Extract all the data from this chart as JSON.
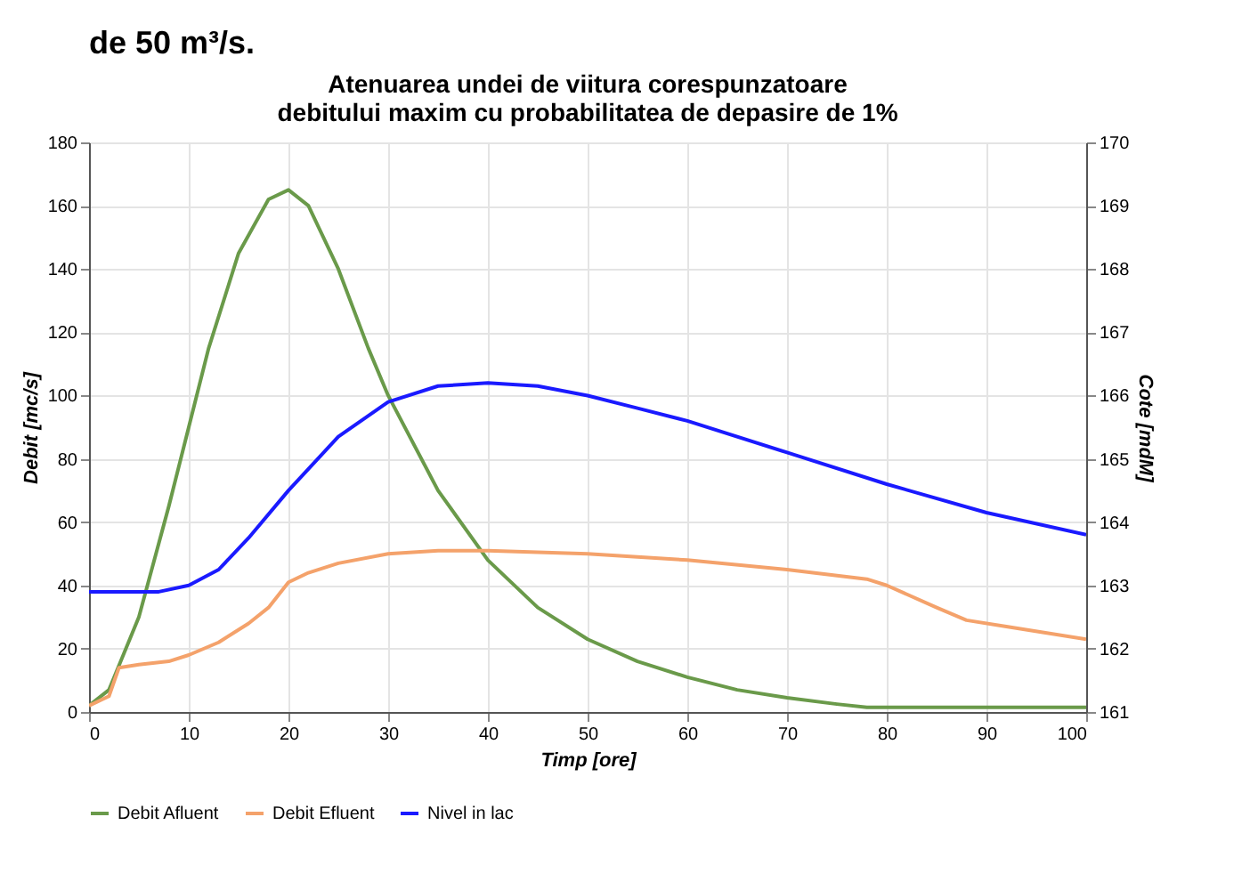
{
  "chart_data": {
    "type": "line",
    "title": "Atenuarea undei de viitura corespunzatoare  debitului maxim cu probabilitatea de depasire de 1%",
    "annotations": [
      "de 50 m³/s."
    ],
    "xlabel": "Timp [ore]",
    "ylabel": "Debit [mc/s]",
    "y2label": "Cote [mdM]",
    "xlim": [
      0,
      100
    ],
    "xticks": [
      0,
      10,
      20,
      30,
      40,
      50,
      60,
      70,
      80,
      90,
      100
    ],
    "ylim": [
      0,
      180
    ],
    "yticks": [
      0,
      20,
      40,
      60,
      80,
      100,
      120,
      140,
      160,
      180
    ],
    "y2lim": [
      161,
      170
    ],
    "y2ticks": [
      161,
      162,
      163,
      164,
      165,
      166,
      167,
      168,
      169,
      170
    ],
    "grid": true,
    "legend": "bottom",
    "series": [
      {
        "name": "Debit Afluent",
        "color": "#6a9a4a",
        "x": [
          0,
          2,
          5,
          8,
          10,
          12,
          15,
          18,
          20,
          22,
          25,
          28,
          30,
          35,
          40,
          45,
          50,
          55,
          60,
          65,
          70,
          75,
          78,
          80,
          90,
          100
        ],
        "values": [
          2,
          7,
          30,
          65,
          90,
          115,
          145,
          162,
          165,
          160,
          140,
          115,
          100,
          70,
          48,
          33,
          23,
          16,
          11,
          7,
          4.5,
          2.5,
          1.5,
          1.5,
          1.5,
          1.5
        ]
      },
      {
        "name": "Debit Efluent",
        "color": "#f4a26b",
        "x": [
          0,
          2,
          3,
          5,
          8,
          10,
          13,
          16,
          18,
          20,
          22,
          25,
          30,
          35,
          40,
          50,
          60,
          70,
          78,
          80,
          85,
          88,
          92,
          100
        ],
        "values": [
          2,
          5,
          14,
          15,
          16,
          18,
          22,
          28,
          33,
          41,
          44,
          47,
          50,
          51,
          51,
          50,
          48,
          45,
          42,
          40,
          33,
          29,
          27,
          23
        ]
      },
      {
        "name": "Nivel in lac",
        "color": "#1a1aff",
        "axis": "y2",
        "x": [
          0,
          7,
          10,
          13,
          16,
          20,
          25,
          30,
          35,
          40,
          45,
          50,
          55,
          60,
          70,
          80,
          90,
          100
        ],
        "values": [
          162.9,
          162.9,
          163.0,
          163.25,
          163.75,
          164.5,
          165.35,
          165.9,
          166.15,
          166.2,
          166.15,
          166.0,
          165.8,
          165.6,
          165.1,
          164.6,
          164.15,
          163.8
        ]
      }
    ]
  }
}
